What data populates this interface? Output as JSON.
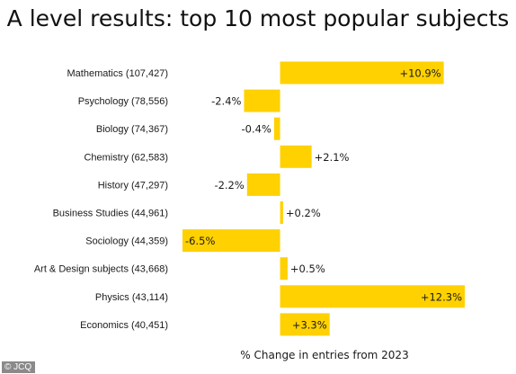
{
  "chart_data": {
    "type": "bar",
    "orientation": "horizontal",
    "title": "A level results: top 10 most popular subjects",
    "xlabel": "% Change in entries from 2023",
    "ylabel": "",
    "categories": [
      "Mathematics (107,427)",
      "Psychology (78,556)",
      "Biology (74,367)",
      "Chemistry (62,583)",
      "History (47,297)",
      "Business Studies (44,961)",
      "Sociology (44,359)",
      "Art & Design subjects (43,668)",
      "Physics (43,114)",
      "Economics (40,451)"
    ],
    "values": [
      10.9,
      -2.4,
      -0.4,
      2.1,
      -2.2,
      0.2,
      -6.5,
      0.5,
      12.3,
      3.3
    ],
    "data_labels": [
      "+10.9%",
      "-2.4%",
      "-0.4%",
      "+2.1%",
      "-2.2%",
      "+0.2%",
      "-6.5%",
      "+0.5%",
      "+12.3%",
      "+3.3%"
    ],
    "xlim": [
      -6.5,
      12.3
    ],
    "grid": false,
    "legend": "none",
    "bar_color": "#FFD100"
  },
  "credit": "JCQ"
}
